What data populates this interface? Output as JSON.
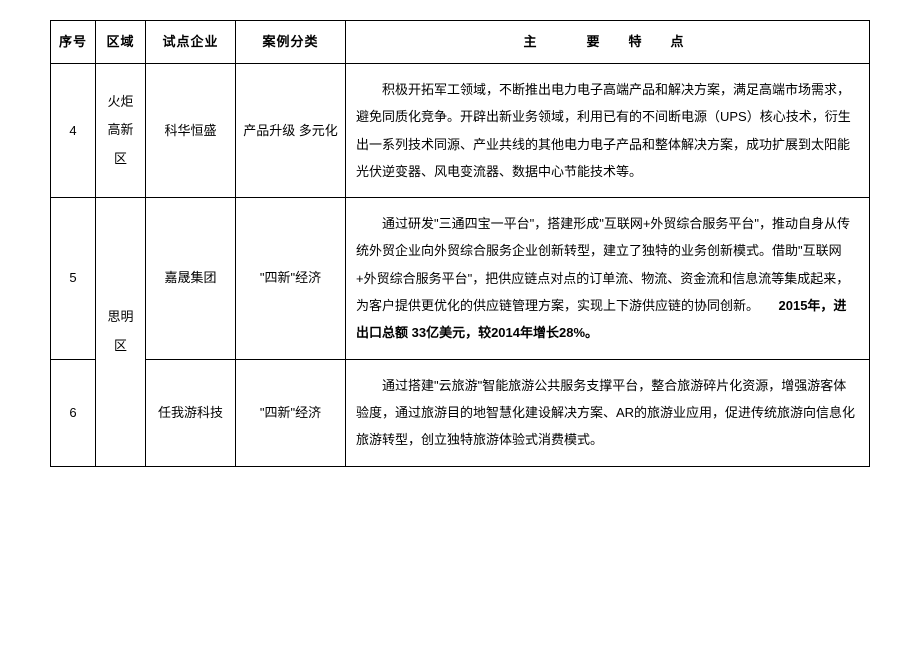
{
  "headers": {
    "seq": "序号",
    "region": "区域",
    "company": "试点企业",
    "category": "案例分类",
    "desc": "主　　要　特　点"
  },
  "rows": [
    {
      "seq": "4",
      "region": "火炬高新区",
      "company": "科华恒盛",
      "category": "产品升级 多元化",
      "desc": "积极开拓军工领域，不断推出电力电子高端产品和解决方案，满足高端市场需求，避免同质化竞争。开辟出新业务领域，利用已有的不间断电源（UPS）核心技术，衍生出一系列技术同源、产业共线的其他电力电子产品和整体解决方案，成功扩展到太阳能光伏逆变器、风电变流器、数据中心节能技术等。"
    },
    {
      "seq": "5",
      "region": "思明区",
      "company": "嘉晟集团",
      "category": "\"四新\"经济",
      "desc_part1": "通过研发\"三通四宝一平台\"，搭建形成\"互联网+外贸综合服务平台\"，推动自身从传统外贸企业向外贸综合服务企业创新转型，建立了独特的业务创新模式。借助\"互联网　　　+外贸综合服务平台\"，把供应链点对点的订单流、物流、资金流和信息流等集成起来，为客户提供更优化的供应链管理方案，实现上下游供应链的协同创新。　　",
      "desc_bold": "2015年，进出口总额 33亿美元，较2014年增长28%。"
    },
    {
      "seq": "6",
      "company": "任我游科技",
      "category": "\"四新\"经济",
      "desc": "通过搭建\"云旅游\"智能旅游公共服务支撑平台，整合旅游碎片化资源，增强游客体验度，通过旅游目的地智慧化建设解决方案、AR的旅游业应用，促进传统旅游向信息化旅游转型，创立独特旅游体验式消费模式。"
    }
  ]
}
